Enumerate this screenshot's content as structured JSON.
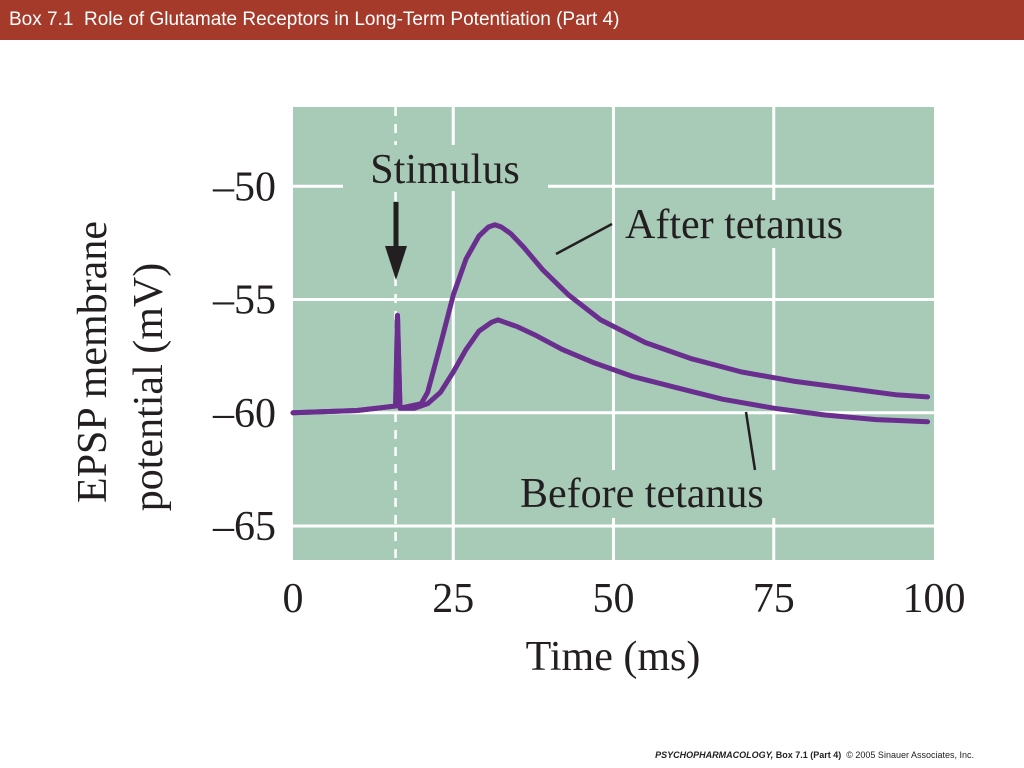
{
  "header": {
    "title": "Box 7.1  Role of Glutamate Receptors in Long-Term Potentiation (Part 4)"
  },
  "footer": {
    "book": "PSYCHOPHARMACOLOGY,",
    "part": " Box 7.1 (Part 4)",
    "copyright": "  © 2005 Sinauer Associates, Inc."
  },
  "colors": {
    "title_bar": "#a63a2a",
    "plot_bg": "#a8cbb8",
    "grid": "#ffffff",
    "curve": "#6a2f8e",
    "text": "#231f20"
  },
  "chart_data": {
    "type": "line",
    "xlabel": "Time (ms)",
    "ylabel_lines": [
      "EPSP membrane",
      "potential (mV)"
    ],
    "xlim": [
      0,
      100
    ],
    "ylim": [
      -66.5,
      -46.5
    ],
    "xticks": [
      0,
      25,
      50,
      75,
      100
    ],
    "xtick_labels": [
      "0",
      "25",
      "50",
      "75",
      "100"
    ],
    "yticks": [
      -50,
      -55,
      -60,
      -65
    ],
    "ytick_labels": [
      "–50",
      "–55",
      "–60",
      "–65"
    ],
    "grid": true,
    "stimulus": {
      "label": "Stimulus",
      "time": 16
    },
    "series": [
      {
        "name": "After tetanus",
        "x": [
          0,
          10,
          16,
          16.3,
          16.7,
          20,
          21,
          23,
          25,
          27,
          29,
          30.5,
          31.5,
          32.5,
          34,
          36,
          39,
          43,
          48,
          55,
          62,
          70,
          78,
          86,
          94,
          99
        ],
        "y": [
          -60.0,
          -59.9,
          -59.7,
          -55.7,
          -59.8,
          -59.6,
          -59.1,
          -57.0,
          -54.8,
          -53.2,
          -52.2,
          -51.8,
          -51.7,
          -51.8,
          -52.1,
          -52.7,
          -53.7,
          -54.8,
          -55.9,
          -56.9,
          -57.6,
          -58.2,
          -58.6,
          -58.9,
          -59.2,
          -59.3
        ]
      },
      {
        "name": "Before tetanus",
        "x": [
          0,
          10,
          16,
          16.3,
          16.7,
          19,
          21,
          23,
          25,
          27,
          29,
          31,
          32,
          33,
          35,
          38,
          42,
          47,
          53,
          60,
          67,
          75,
          83,
          91,
          99
        ],
        "y": [
          -60.0,
          -59.9,
          -59.7,
          -55.7,
          -59.8,
          -59.8,
          -59.6,
          -59.1,
          -58.2,
          -57.2,
          -56.4,
          -56.0,
          -55.9,
          -56.0,
          -56.2,
          -56.6,
          -57.2,
          -57.8,
          -58.4,
          -58.9,
          -59.4,
          -59.8,
          -60.1,
          -60.3,
          -60.4
        ]
      }
    ],
    "annotations": [
      {
        "text": "After tetanus",
        "series": 0
      },
      {
        "text": "Before tetanus",
        "series": 1
      }
    ]
  }
}
